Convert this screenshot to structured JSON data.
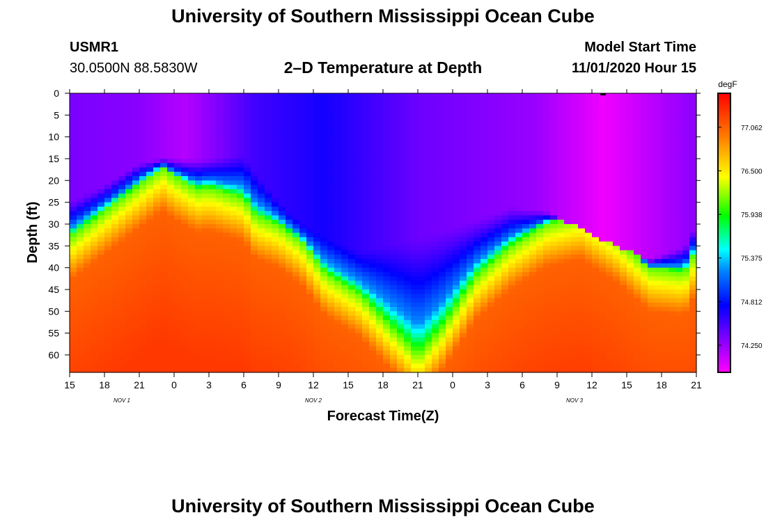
{
  "page": {
    "top_title": "University of Southern Mississippi Ocean Cube",
    "bottom_title": "University of Southern Mississippi Ocean Cube",
    "station_id": "USMR1",
    "station_coords": "30.0500N 88.5830W",
    "plot_title": "2–D Temperature at Depth",
    "model_start_label": "Model Start Time",
    "model_start_value": "11/01/2020 Hour 15"
  },
  "chart_data": {
    "type": "heatmap",
    "title": "2–D Temperature at Depth",
    "xlabel": "Forecast Time(Z)",
    "ylabel": "Depth (ft)",
    "colorbar_unit": "degF",
    "x_tick_labels": [
      "15",
      "18",
      "21",
      "0",
      "3",
      "6",
      "9",
      "12",
      "15",
      "18",
      "21",
      "0",
      "3",
      "6",
      "9",
      "12",
      "15",
      "18",
      "21"
    ],
    "x_hours_range": [
      0,
      54
    ],
    "date_labels": [
      {
        "label": "NOV  1",
        "hour": 4.5
      },
      {
        "label": "NOV  2",
        "hour": 21
      },
      {
        "label": "NOV  3",
        "hour": 43.5
      }
    ],
    "y_ticks": [
      0,
      5,
      10,
      15,
      20,
      25,
      30,
      35,
      40,
      45,
      50,
      55,
      60
    ],
    "ylim": [
      0,
      64
    ],
    "color_range": [
      73.9,
      77.5
    ],
    "colorbar_ticks": [
      "77.062",
      "76.500",
      "75.938",
      "75.375",
      "74.812",
      "74.250"
    ],
    "colorbar_tick_values": [
      77.062,
      76.5,
      75.938,
      75.375,
      74.812,
      74.25
    ],
    "thermocline_depth_ft": [
      [
        0,
        33
      ],
      [
        3,
        27
      ],
      [
        6,
        21
      ],
      [
        8,
        17
      ],
      [
        9,
        19
      ],
      [
        11,
        22
      ],
      [
        12,
        21.5
      ],
      [
        15,
        24
      ],
      [
        16,
        28
      ],
      [
        18,
        30
      ],
      [
        20,
        34
      ],
      [
        22,
        41
      ],
      [
        25,
        46
      ],
      [
        27.5,
        53
      ],
      [
        29,
        57
      ],
      [
        30,
        60
      ],
      [
        32,
        54
      ],
      [
        35,
        42
      ],
      [
        38,
        35
      ],
      [
        41,
        30
      ],
      [
        44,
        28
      ],
      [
        47,
        33
      ],
      [
        50,
        40
      ],
      [
        53,
        41
      ],
      [
        54,
        36
      ]
    ],
    "upper_boundary_depth_ft": [
      [
        0,
        25
      ],
      [
        3,
        21
      ],
      [
        6,
        16
      ],
      [
        8,
        15
      ],
      [
        10,
        15
      ],
      [
        12,
        15
      ],
      [
        15,
        14
      ],
      [
        16,
        18
      ],
      [
        18,
        25
      ],
      [
        20,
        30
      ],
      [
        22,
        33
      ],
      [
        25,
        36
      ],
      [
        30,
        33
      ],
      [
        35,
        29
      ],
      [
        38,
        26
      ],
      [
        41,
        27
      ],
      [
        44,
        31
      ],
      [
        47,
        35
      ],
      [
        50,
        38
      ],
      [
        53,
        35
      ],
      [
        54,
        30
      ]
    ],
    "surface_temp_samples": [
      {
        "hour": 0,
        "value": 74.35
      },
      {
        "hour": 6,
        "value": 74.3
      },
      {
        "hour": 10,
        "value": 74.15
      },
      {
        "hour": 16,
        "value": 74.55
      },
      {
        "hour": 22,
        "value": 74.7
      },
      {
        "hour": 30,
        "value": 74.4
      },
      {
        "hour": 40,
        "value": 74.25
      },
      {
        "hour": 46,
        "value": 73.95
      },
      {
        "hour": 54,
        "value": 74.3
      }
    ],
    "deep_warm_temp": 77.25,
    "mid_warm_temp": 77.0,
    "green_layer_temp": 75.6
  }
}
